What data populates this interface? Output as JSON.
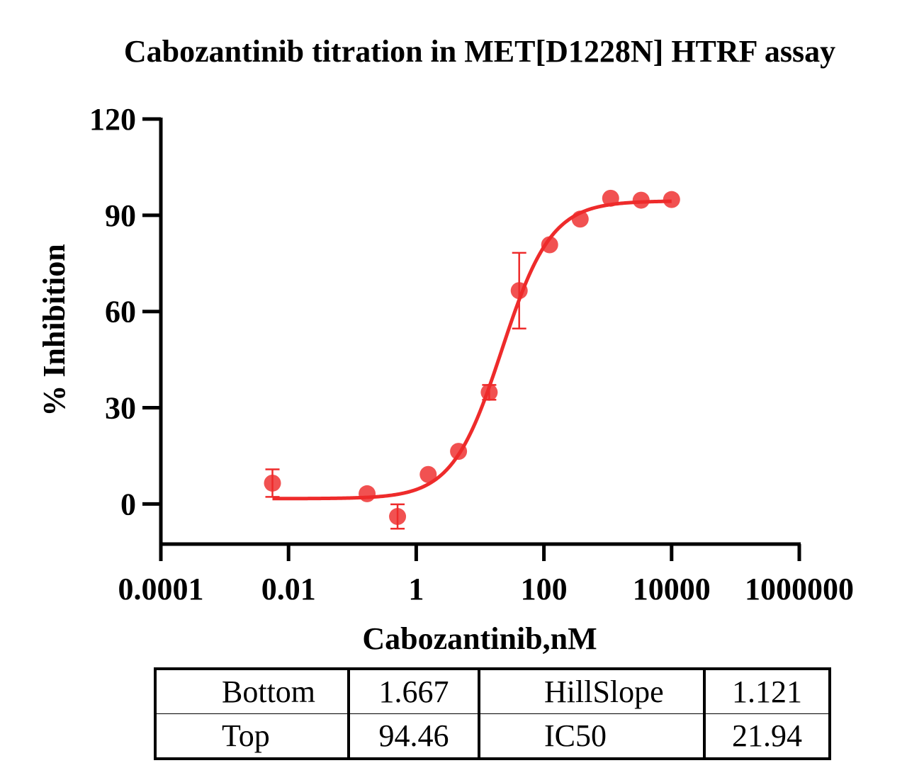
{
  "chart_data": {
    "type": "scatter",
    "title": "Cabozantinib titration in MET[D1228N] HTRF assay",
    "xlabel": "Cabozantinib,nM",
    "ylabel": "% Inhibition",
    "x_scale": "log",
    "xlim": [
      0.0001,
      1000000
    ],
    "ylim": [
      -12.5,
      120
    ],
    "x_ticks": [
      0.0001,
      0.01,
      1,
      100,
      10000,
      1000000
    ],
    "x_tick_labels": [
      "0.0001",
      "0.01",
      "1",
      "100",
      "10000",
      "1000000"
    ],
    "y_ticks": [
      0,
      30,
      60,
      90,
      120
    ],
    "y_tick_labels": [
      "0",
      "30",
      "60",
      "90",
      "120"
    ],
    "grid": false,
    "color": "#ee2b2b",
    "points": [
      {
        "x": 0.0056,
        "y": 6.5,
        "err": 4.3
      },
      {
        "x": 0.17,
        "y": 3.2,
        "err": 0
      },
      {
        "x": 0.51,
        "y": -3.9,
        "err": 3.8
      },
      {
        "x": 1.54,
        "y": 9.2,
        "err": 0
      },
      {
        "x": 4.6,
        "y": 16.4,
        "err": 0
      },
      {
        "x": 13.9,
        "y": 34.8,
        "err": 2.3
      },
      {
        "x": 41,
        "y": 66.5,
        "err": 11.8
      },
      {
        "x": 123,
        "y": 80.8,
        "err": 0
      },
      {
        "x": 370,
        "y": 88.8,
        "err": 0
      },
      {
        "x": 1110,
        "y": 95.3,
        "err": 0
      },
      {
        "x": 3330,
        "y": 94.7,
        "err": 0
      },
      {
        "x": 10000,
        "y": 94.9,
        "err": 0
      }
    ],
    "fit": {
      "bottom": 1.667,
      "top": 94.46,
      "hill_slope": 1.121,
      "ic50": 21.94,
      "x_range": [
        0.0056,
        10000
      ]
    }
  },
  "params_table": [
    [
      {
        "label": "Bottom",
        "value": "1.667"
      },
      {
        "label": "HillSlope",
        "value": "1.121"
      }
    ],
    [
      {
        "label": "Top",
        "value": "94.46"
      },
      {
        "label": "IC50",
        "value": "21.94"
      }
    ]
  ]
}
